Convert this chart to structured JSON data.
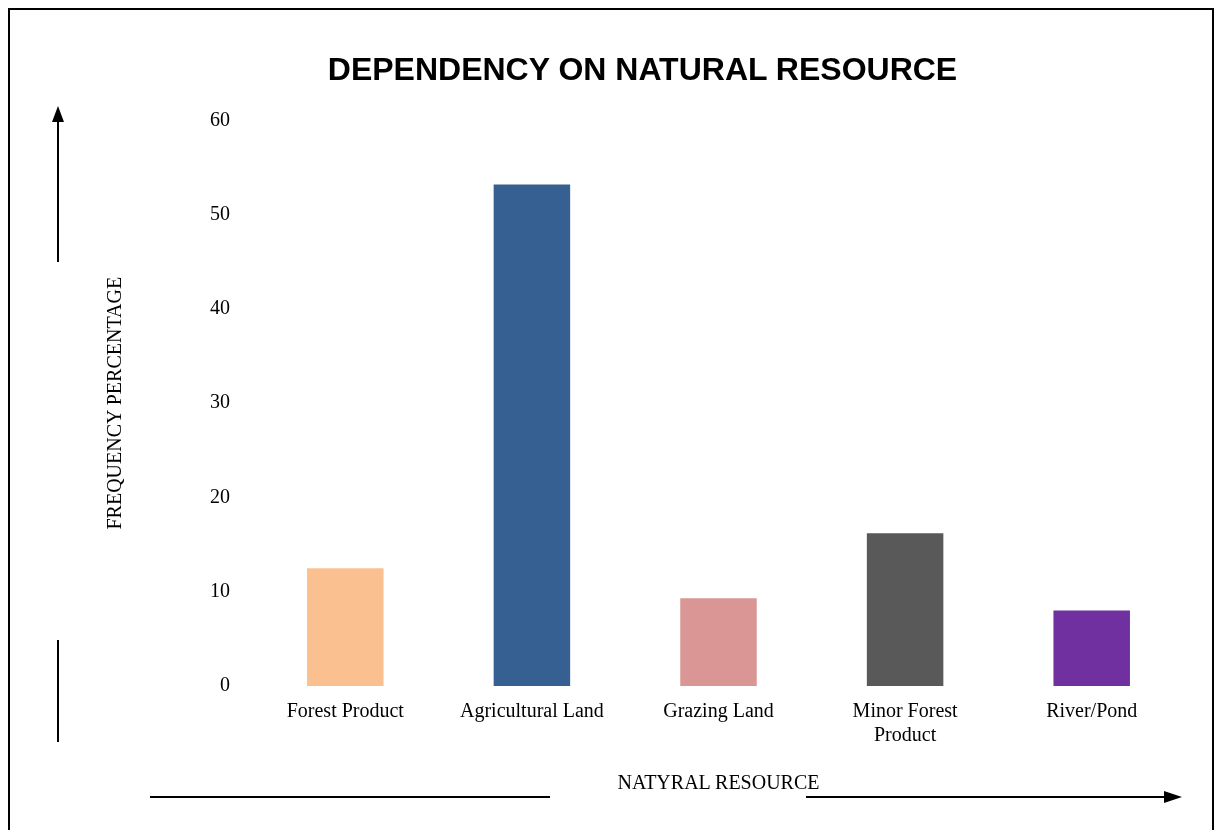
{
  "chart_data": {
    "type": "bar",
    "title": "DEPENDENCY ON NATURAL RESOURCE",
    "xlabel": "NATYRAL RESOURCE",
    "ylabel": "FREQUENCY PERCENTAGE",
    "categories": [
      "Forest Product",
      "Agricultural Land",
      "Grazing Land",
      "Minor Forest Product",
      "River/Pond"
    ],
    "values": [
      12.5,
      53.2,
      9.3,
      16.2,
      8.0
    ],
    "colors": [
      "#fac090",
      "#376092",
      "#d99694",
      "#595959",
      "#7030a0"
    ],
    "ylim": [
      0,
      60
    ],
    "yticks": [
      0,
      10,
      20,
      30,
      40,
      50,
      60
    ],
    "grid": false,
    "legend": false
  }
}
